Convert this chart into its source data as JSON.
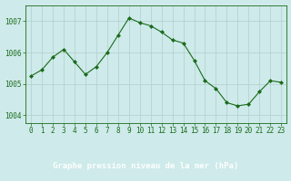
{
  "x": [
    0,
    1,
    2,
    3,
    4,
    5,
    6,
    7,
    8,
    9,
    10,
    11,
    12,
    13,
    14,
    15,
    16,
    17,
    18,
    19,
    20,
    21,
    22,
    23
  ],
  "y": [
    1005.25,
    1005.45,
    1005.85,
    1006.1,
    1005.7,
    1005.3,
    1005.55,
    1006.0,
    1006.55,
    1007.1,
    1006.95,
    1006.85,
    1006.65,
    1006.4,
    1006.3,
    1005.75,
    1005.1,
    1004.85,
    1004.4,
    1004.3,
    1004.35,
    1004.75,
    1005.1,
    1005.05
  ],
  "line_color": "#1a6b1a",
  "marker": "D",
  "marker_size": 2.0,
  "bg_color": "#ceeaea",
  "grid_color": "#b0d0cc",
  "xlabel": "Graphe pression niveau de la mer (hPa)",
  "ylim": [
    1003.75,
    1007.5
  ],
  "yticks": [
    1004,
    1005,
    1006,
    1007
  ],
  "xticks": [
    0,
    1,
    2,
    3,
    4,
    5,
    6,
    7,
    8,
    9,
    10,
    11,
    12,
    13,
    14,
    15,
    16,
    17,
    18,
    19,
    20,
    21,
    22,
    23
  ],
  "tick_color": "#1a6b1a",
  "label_color": "#1a6b1a",
  "axis_color": "#1a6b1a",
  "xlabel_fontsize": 6.5,
  "tick_fontsize": 5.5,
  "line_width": 0.8,
  "bottom_bar_color": "#2a7a2a",
  "bottom_bar_height": 0.18
}
